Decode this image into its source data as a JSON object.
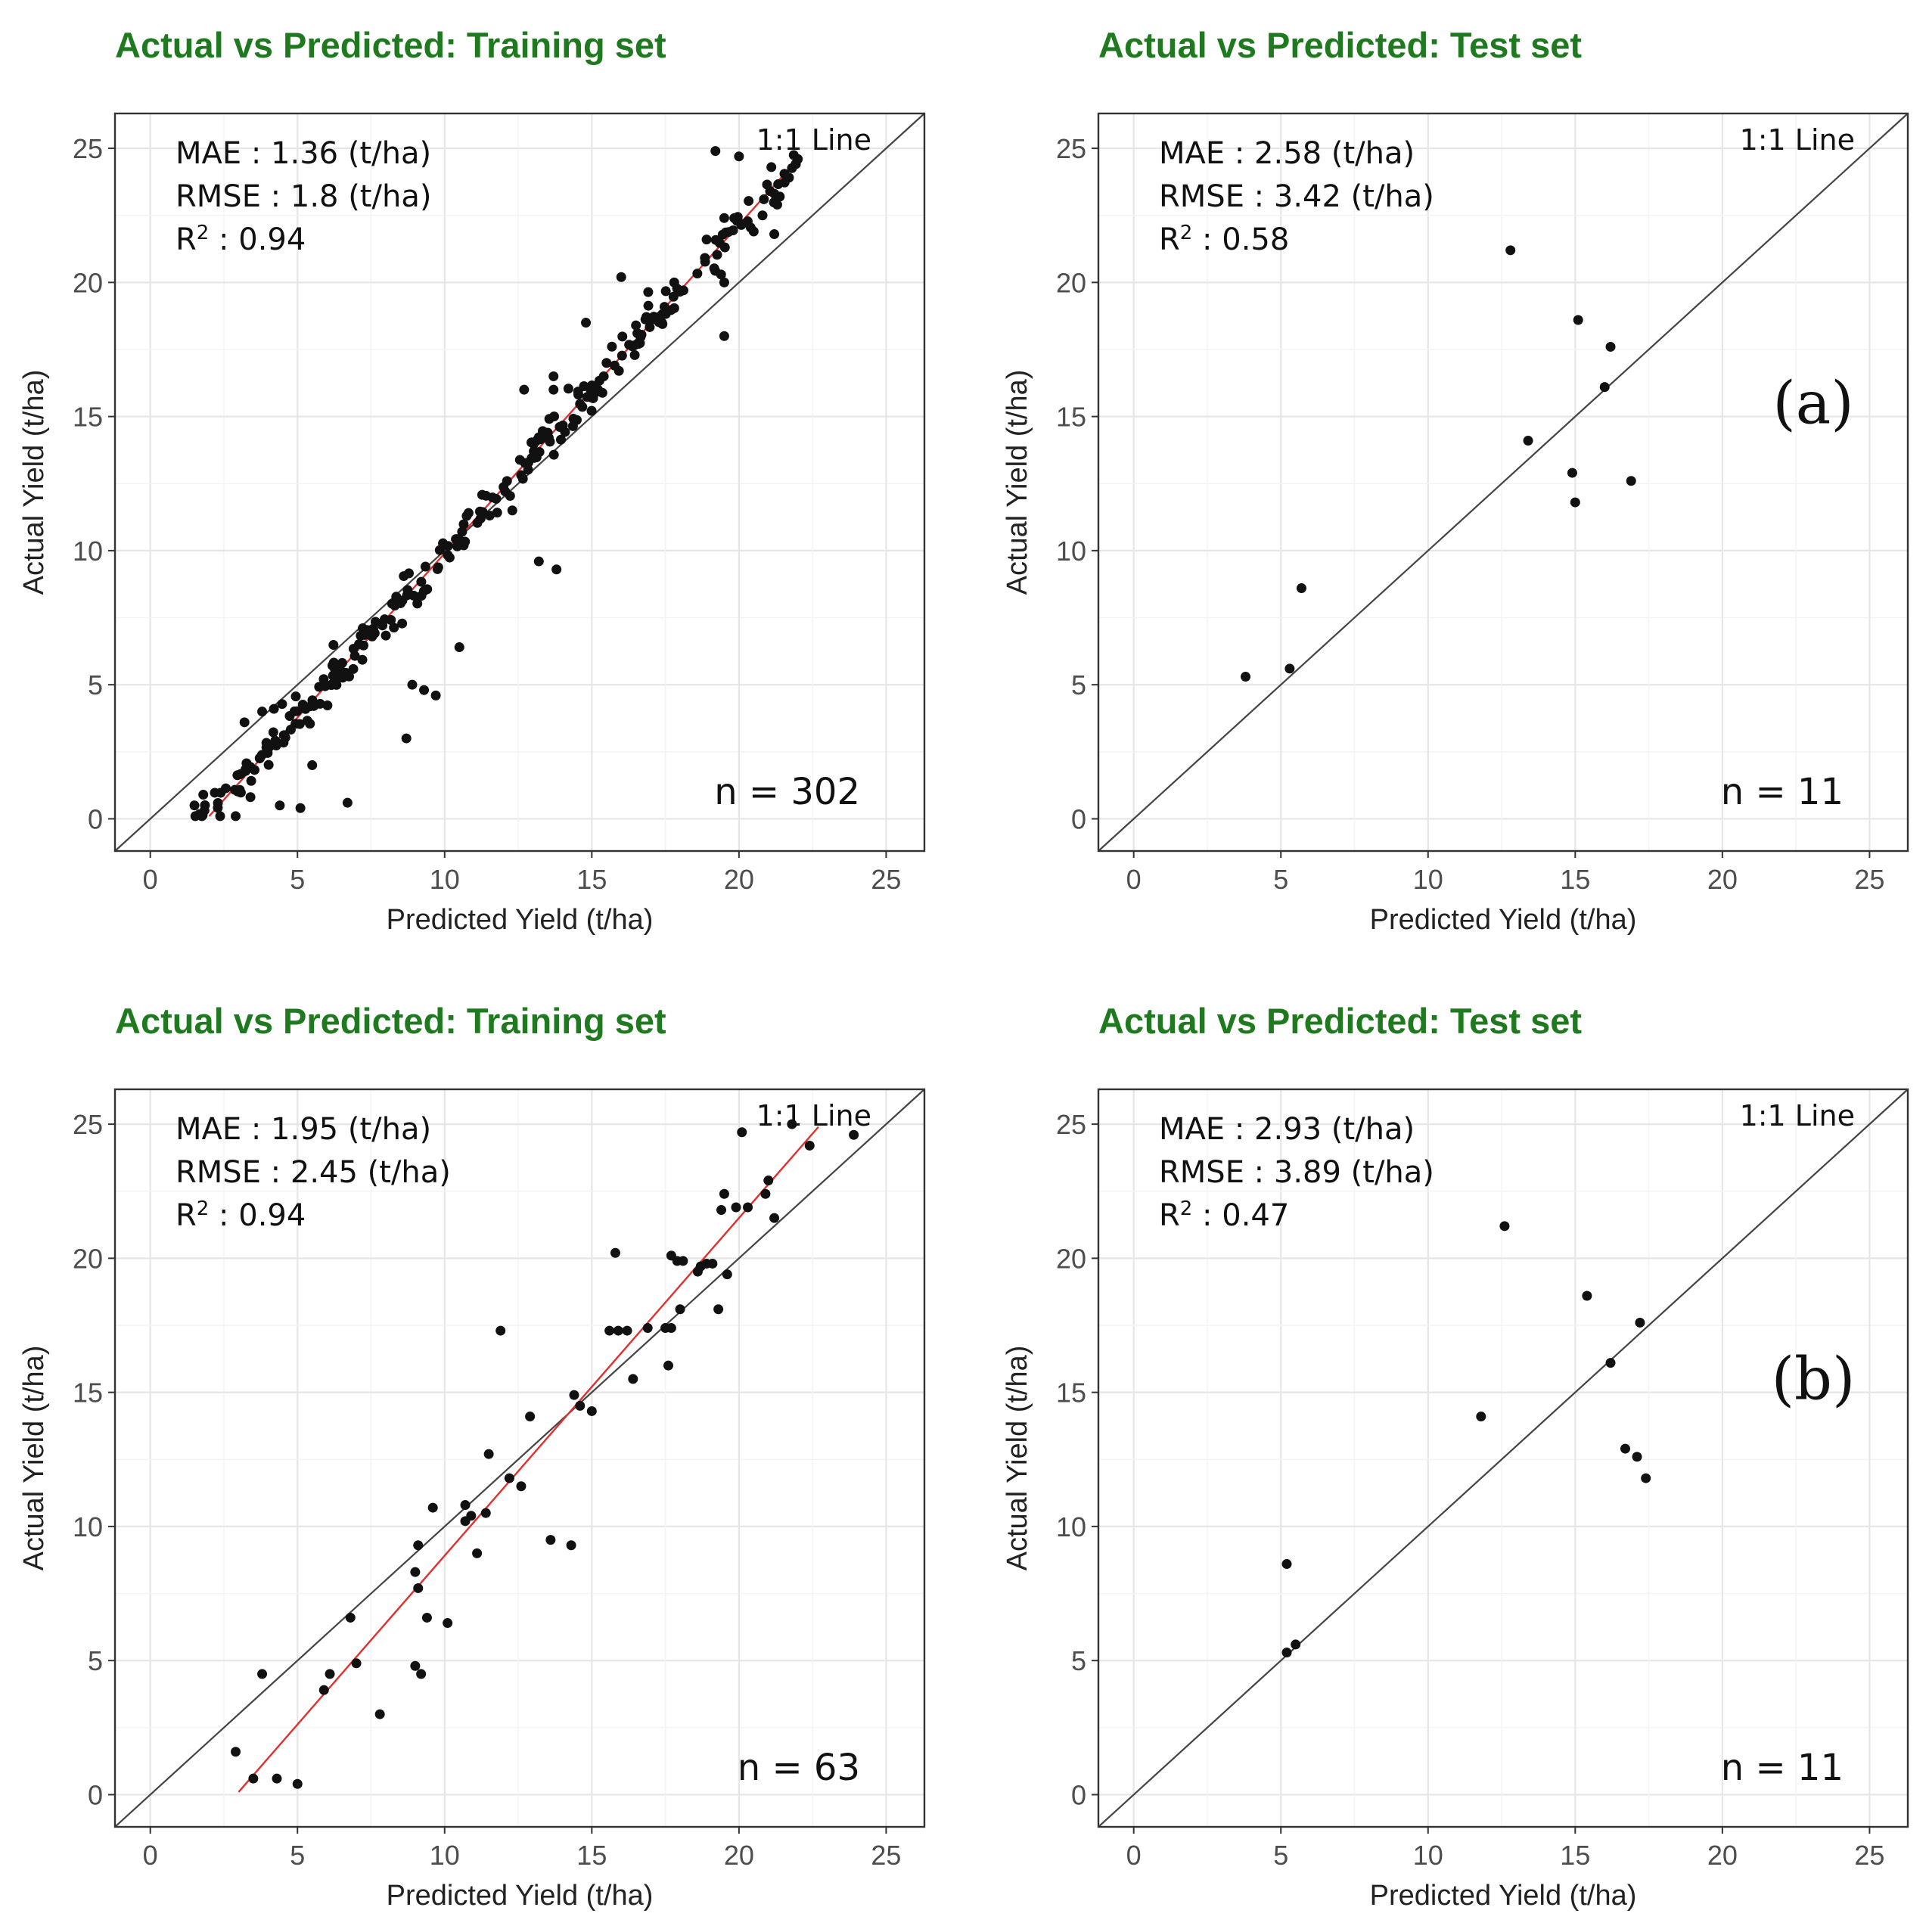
{
  "colors": {
    "title": "#1f7a1f",
    "points": "#111111",
    "fit_line": "#e03030",
    "identity_line": "#444444",
    "grid": "#ececec"
  },
  "panel_tags": {
    "a": "(a)",
    "b": "(b)"
  },
  "chart_data": [
    {
      "type": "scatter",
      "title": "Actual vs Predicted: Training set",
      "xlabel": "Predicted Yield (t/ha)",
      "ylabel": "Actual Yield (t/ha)",
      "xlim": [
        -1.2,
        26.3
      ],
      "ylim": [
        -1.2,
        26.3
      ],
      "xticks": [
        0,
        5,
        10,
        15,
        20,
        25
      ],
      "yticks": [
        0,
        5,
        10,
        15,
        20,
        25
      ],
      "stats": {
        "mae": "MAE : 1.36 (t/ha)",
        "rmse": "RMSE : 1.8 (t/ha)",
        "r2_prefix": "R",
        "r2_sup": "2",
        "r2_value": " : 0.94"
      },
      "identity_label": "1:1 Line",
      "n_label": "n =  302",
      "fit_line": {
        "x": [
          2.0,
          22.0
        ],
        "y": [
          0.1,
          24.6
        ]
      },
      "generated_points": {
        "count": 302,
        "xmin": 1.5,
        "xmax": 22.0,
        "slope": 1.22,
        "intercept": -2.3,
        "seed": 7
      },
      "points": [
        [
          22.0,
          24.6
        ],
        [
          21.1,
          24.3
        ],
        [
          20.0,
          24.7
        ],
        [
          19.2,
          24.9
        ],
        [
          21.3,
          22.9
        ],
        [
          20.8,
          22.5
        ],
        [
          21.2,
          21.8
        ],
        [
          20.5,
          21.9
        ],
        [
          19.5,
          22.4
        ],
        [
          18.9,
          21.6
        ],
        [
          19.5,
          20.0
        ],
        [
          19.5,
          18.0
        ],
        [
          17.8,
          20.0
        ],
        [
          16.0,
          20.2
        ],
        [
          16.5,
          18.4
        ],
        [
          15.5,
          17.0
        ],
        [
          14.8,
          18.5
        ],
        [
          13.7,
          16.0
        ],
        [
          13.7,
          16.5
        ],
        [
          12.7,
          16.0
        ],
        [
          13.2,
          9.6
        ],
        [
          13.8,
          9.3
        ],
        [
          12.3,
          11.5
        ],
        [
          10.5,
          6.4
        ],
        [
          9.7,
          4.6
        ],
        [
          9.3,
          4.8
        ],
        [
          8.9,
          5.0
        ],
        [
          8.7,
          3.0
        ],
        [
          6.7,
          0.6
        ],
        [
          5.1,
          0.4
        ],
        [
          2.9,
          0.1
        ],
        [
          1.5,
          0.5
        ],
        [
          1.8,
          0.9
        ],
        [
          3.2,
          3.6
        ],
        [
          3.8,
          4.0
        ],
        [
          4.2,
          4.1
        ],
        [
          4.4,
          0.5
        ],
        [
          5.5,
          2.0
        ]
      ]
    },
    {
      "type": "scatter",
      "title": "Actual vs Predicted: Test set",
      "xlabel": "Predicted Yield (t/ha)",
      "ylabel": "Actual Yield (t/ha)",
      "xlim": [
        -1.2,
        26.3
      ],
      "ylim": [
        -1.2,
        26.3
      ],
      "xticks": [
        0,
        5,
        10,
        15,
        20,
        25
      ],
      "yticks": [
        0,
        5,
        10,
        15,
        20,
        25
      ],
      "stats": {
        "mae": "MAE : 2.58 (t/ha)",
        "rmse": "RMSE : 3.42 (t/ha)",
        "r2_prefix": "R",
        "r2_sup": "2",
        "r2_value": " : 0.58"
      },
      "identity_label": "1:1 Line",
      "n_label": "n = 11",
      "panel_tag_key": "a",
      "points": [
        [
          3.8,
          5.3
        ],
        [
          5.3,
          5.6
        ],
        [
          5.7,
          8.6
        ],
        [
          12.8,
          21.2
        ],
        [
          13.4,
          14.1
        ],
        [
          14.9,
          12.9
        ],
        [
          15.0,
          11.8
        ],
        [
          15.1,
          18.6
        ],
        [
          16.0,
          16.1
        ],
        [
          16.2,
          17.6
        ],
        [
          16.9,
          12.6
        ]
      ]
    },
    {
      "type": "scatter",
      "title": "Actual vs Predicted: Training set",
      "xlabel": "Predicted Yield (t/ha)",
      "ylabel": "Actual Yield (t/ha)",
      "xlim": [
        -1.2,
        26.3
      ],
      "ylim": [
        -1.2,
        26.3
      ],
      "xticks": [
        0,
        5,
        10,
        15,
        20,
        25
      ],
      "yticks": [
        0,
        5,
        10,
        15,
        20,
        25
      ],
      "stats": {
        "mae": "MAE : 1.95 (t/ha)",
        "rmse": "RMSE : 2.45 (t/ha)",
        "r2_prefix": "R",
        "r2_sup": "2",
        "r2_value": " : 0.94"
      },
      "identity_label": "1:1 Line",
      "n_label": "n =  63",
      "fit_line": {
        "x": [
          3.0,
          22.7
        ],
        "y": [
          0.1,
          24.9
        ]
      },
      "points": [
        [
          2.9,
          1.6
        ],
        [
          3.5,
          0.6
        ],
        [
          3.8,
          4.5
        ],
        [
          4.3,
          0.6
        ],
        [
          5.0,
          0.4
        ],
        [
          5.9,
          3.9
        ],
        [
          6.1,
          4.5
        ],
        [
          6.8,
          6.6
        ],
        [
          7.0,
          4.9
        ],
        [
          7.8,
          3.0
        ],
        [
          9.0,
          4.8
        ],
        [
          9.2,
          4.5
        ],
        [
          9.4,
          6.6
        ],
        [
          10.1,
          6.4
        ],
        [
          9.0,
          8.3
        ],
        [
          9.1,
          7.7
        ],
        [
          9.1,
          9.3
        ],
        [
          9.6,
          10.7
        ],
        [
          10.7,
          10.2
        ],
        [
          10.7,
          10.8
        ],
        [
          11.1,
          9.0
        ],
        [
          11.4,
          10.5
        ],
        [
          11.5,
          12.7
        ],
        [
          11.9,
          17.3
        ],
        [
          12.2,
          11.8
        ],
        [
          12.6,
          11.5
        ],
        [
          12.9,
          14.1
        ],
        [
          13.6,
          9.5
        ],
        [
          14.3,
          9.3
        ],
        [
          14.4,
          14.9
        ],
        [
          14.6,
          14.5
        ],
        [
          15.6,
          17.3
        ],
        [
          15.8,
          20.2
        ],
        [
          15.9,
          17.3
        ],
        [
          16.2,
          17.3
        ],
        [
          16.4,
          15.5
        ],
        [
          17.5,
          17.4
        ],
        [
          17.6,
          16.0
        ],
        [
          17.7,
          17.4
        ],
        [
          17.7,
          20.1
        ],
        [
          17.9,
          19.9
        ],
        [
          18.0,
          18.1
        ],
        [
          18.1,
          19.9
        ],
        [
          18.6,
          19.5
        ],
        [
          18.7,
          19.7
        ],
        [
          18.9,
          19.8
        ],
        [
          19.3,
          18.1
        ],
        [
          19.4,
          21.8
        ],
        [
          19.5,
          22.4
        ],
        [
          19.6,
          19.4
        ],
        [
          19.9,
          21.9
        ],
        [
          20.1,
          24.7
        ],
        [
          20.9,
          22.4
        ],
        [
          21.0,
          22.9
        ],
        [
          21.2,
          21.5
        ],
        [
          21.8,
          25.0
        ],
        [
          22.4,
          24.2
        ],
        [
          23.9,
          24.6
        ],
        [
          15.0,
          14.3
        ],
        [
          16.9,
          17.4
        ],
        [
          19.1,
          19.8
        ],
        [
          20.3,
          21.9
        ],
        [
          10.9,
          10.4
        ]
      ]
    },
    {
      "type": "scatter",
      "title": "Actual vs Predicted: Test set",
      "xlabel": "Predicted Yield (t/ha)",
      "ylabel": "Actual Yield (t/ha)",
      "xlim": [
        -1.2,
        26.3
      ],
      "ylim": [
        -1.2,
        26.3
      ],
      "xticks": [
        0,
        5,
        10,
        15,
        20,
        25
      ],
      "yticks": [
        0,
        5,
        10,
        15,
        20,
        25
      ],
      "stats": {
        "mae": "MAE : 2.93 (t/ha)",
        "rmse": "RMSE : 3.89 (t/ha)",
        "r2_prefix": "R",
        "r2_sup": "2",
        "r2_value": " : 0.47"
      },
      "identity_label": "1:1 Line",
      "n_label": "n = 11",
      "panel_tag_key": "b",
      "points": [
        [
          5.2,
          8.6
        ],
        [
          5.2,
          5.3
        ],
        [
          5.5,
          5.6
        ],
        [
          11.8,
          14.1
        ],
        [
          12.6,
          21.2
        ],
        [
          15.4,
          18.6
        ],
        [
          16.2,
          16.1
        ],
        [
          16.7,
          12.9
        ],
        [
          17.1,
          12.6
        ],
        [
          17.2,
          17.6
        ],
        [
          17.4,
          11.8
        ]
      ]
    }
  ]
}
